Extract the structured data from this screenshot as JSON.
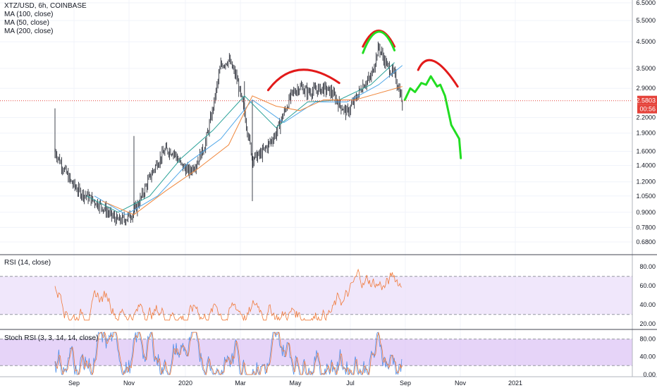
{
  "legend": {
    "title": "XTZ/USD, 6h, COINBASE",
    "ma100": "MA (100, close)",
    "ma50": "MA (50, close)",
    "ma200": "MA (200, close)",
    "rsi": "RSI (14, close)",
    "stoch": "Stoch RSI (3, 3, 14, 14, close)"
  },
  "colors": {
    "candles": "#131722",
    "ma100": "#4fa7e8",
    "ma50": "#2aa198",
    "ma200": "#f0883e",
    "rsi_line": "#f07a3a",
    "rsi_band": "#e9ddfa",
    "stoch_band": "#dcc2f5",
    "stoch_k": "#4f8fe8",
    "stoch_d": "#f07a3a",
    "red_arc": "#e21a1a",
    "green_path": "#22dd22",
    "price_tag": "#e5433b"
  },
  "chart_data": [
    {
      "type": "candlestick",
      "name": "price",
      "title": "XTZ/USD, 6h, COINBASE",
      "y_scale": "log",
      "y_ticks": [
        "6.5000",
        "5.5000",
        "4.5000",
        "3.5000",
        "2.9000",
        "2.2000",
        "1.9000",
        "1.6000",
        "1.4000",
        "1.2000",
        "1.0500",
        "0.9000",
        "0.7800",
        "0.6800"
      ],
      "x_ticks": [
        "Sep",
        "Nov",
        "2020",
        "Mar",
        "May",
        "Jul",
        "Sep",
        "Nov",
        "2021"
      ],
      "last_price": "2.5803",
      "countdown": "00:56",
      "series": [
        {
          "name": "price",
          "points": [
            [
              0,
              1.6
            ],
            [
              1,
              1.38
            ],
            [
              2,
              1.2
            ],
            [
              3,
              1.1
            ],
            [
              4,
              1.05
            ],
            [
              5,
              1.0
            ],
            [
              6,
              0.95
            ],
            [
              7,
              0.88
            ],
            [
              8,
              0.83
            ],
            [
              9,
              0.85
            ],
            [
              10,
              0.9
            ],
            [
              11,
              1.05
            ],
            [
              12,
              1.25
            ],
            [
              13,
              1.45
            ],
            [
              14,
              1.62
            ],
            [
              15,
              1.6
            ],
            [
              16,
              1.4
            ],
            [
              17,
              1.32
            ],
            [
              18,
              1.45
            ],
            [
              19,
              1.7
            ],
            [
              20,
              2.4
            ],
            [
              21,
              3.6
            ],
            [
              22,
              3.8
            ],
            [
              23,
              3.2
            ],
            [
              24,
              2.3
            ],
            [
              25,
              1.5
            ],
            [
              26,
              1.55
            ],
            [
              27,
              1.7
            ],
            [
              28,
              1.9
            ],
            [
              29,
              2.3
            ],
            [
              30,
              2.75
            ],
            [
              31,
              2.95
            ],
            [
              32,
              2.8
            ],
            [
              33,
              2.85
            ],
            [
              34,
              2.9
            ],
            [
              35,
              2.8
            ],
            [
              36,
              2.5
            ],
            [
              37,
              2.3
            ],
            [
              38,
              2.6
            ],
            [
              39,
              3.0
            ],
            [
              40,
              3.2
            ],
            [
              41,
              4.3
            ],
            [
              42,
              3.6
            ],
            [
              43,
              3.3
            ],
            [
              44,
              2.6
            ]
          ]
        },
        {
          "name": "MA (50, close)",
          "points": [
            [
              4,
              1.05
            ],
            [
              8,
              0.9
            ],
            [
              12,
              1.05
            ],
            [
              16,
              1.5
            ],
            [
              20,
              1.95
            ],
            [
              24,
              2.7
            ],
            [
              28,
              2.0
            ],
            [
              32,
              2.55
            ],
            [
              36,
              2.6
            ],
            [
              40,
              3.0
            ],
            [
              43,
              3.7
            ]
          ]
        },
        {
          "name": "MA (100, close)",
          "points": [
            [
              5,
              1.05
            ],
            [
              9,
              0.88
            ],
            [
              13,
              1.05
            ],
            [
              17,
              1.45
            ],
            [
              21,
              1.8
            ],
            [
              25,
              2.6
            ],
            [
              29,
              2.1
            ],
            [
              33,
              2.55
            ],
            [
              37,
              2.55
            ],
            [
              41,
              3.0
            ],
            [
              44,
              3.6
            ]
          ]
        },
        {
          "name": "MA (200, close)",
          "points": [
            [
              6,
              1.0
            ],
            [
              10,
              0.88
            ],
            [
              14,
              1.1
            ],
            [
              18,
              1.35
            ],
            [
              22,
              1.7
            ],
            [
              25,
              2.7
            ],
            [
              28,
              2.45
            ],
            [
              31,
              2.35
            ],
            [
              34,
              2.6
            ],
            [
              38,
              2.6
            ],
            [
              44,
              2.95
            ]
          ]
        }
      ],
      "annotations": [
        {
          "type": "arc",
          "color": "red",
          "from": [
            27,
            2.85
          ],
          "peak": [
            31,
            3.45
          ],
          "to": [
            36,
            3.05
          ]
        },
        {
          "type": "arc",
          "color": "red",
          "from": [
            39,
            4.3
          ],
          "peak": [
            41,
            5.0
          ],
          "to": [
            43,
            4.3
          ]
        },
        {
          "type": "arc",
          "color": "red",
          "from": [
            46,
            3.45
          ],
          "peak": [
            48,
            3.75
          ],
          "to": [
            51,
            2.95
          ]
        },
        {
          "type": "arc",
          "color": "green",
          "from": [
            39,
            4.05
          ],
          "peak": [
            41,
            4.95
          ],
          "to": [
            43,
            4.15
          ]
        },
        {
          "type": "path",
          "color": "green",
          "points": [
            [
              44.3,
              2.6
            ],
            [
              45,
              2.9
            ],
            [
              45.6,
              2.8
            ],
            [
              46.4,
              3.05
            ],
            [
              47,
              3.0
            ],
            [
              47.6,
              3.25
            ],
            [
              48.4,
              2.95
            ],
            [
              48.8,
              3.0
            ],
            [
              49.4,
              2.7
            ],
            [
              50.2,
              2.05
            ],
            [
              51.2,
              1.8
            ],
            [
              51.4,
              1.5
            ]
          ]
        }
      ]
    },
    {
      "type": "line",
      "name": "rsi",
      "title": "RSI (14, close)",
      "y_ticks": [
        "80.00",
        "60.00",
        "40.00",
        "20.00"
      ],
      "band": [
        30,
        70
      ],
      "ylim": [
        15,
        92
      ]
    },
    {
      "type": "line",
      "name": "stoch_rsi",
      "title": "Stoch RSI (3, 3, 14, 14, close)",
      "y_ticks": [
        "80.00",
        "40.00",
        "0.00"
      ],
      "band": [
        20,
        80
      ],
      "ylim": [
        -5,
        100
      ]
    }
  ]
}
